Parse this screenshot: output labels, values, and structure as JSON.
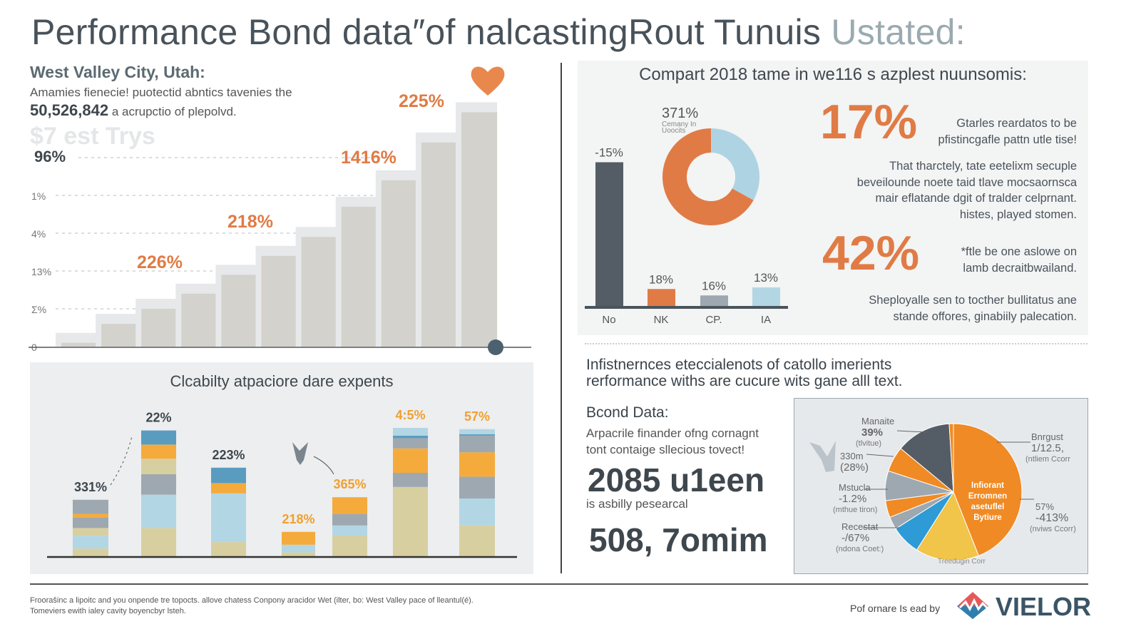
{
  "header": {
    "title": "Performance Bond data″of nalcastingRout Tunuis",
    "title_suffix": "Ustated:"
  },
  "step_panel": {
    "heading": "West Valley City, Utah:",
    "desc_line1": "Amamies fienecie! puotectid abntics tavenies the",
    "desc_number": "50,526,842",
    "desc_line2": "a acrupctio of plepolvd.",
    "watermark": "$7 est Trys",
    "heart_icon": "heart-icon"
  },
  "summary": {
    "heading1": "Infistnernces eteccialenots of catollo imerients",
    "heading2": "rerformance withs are cucure wits gane alll text.",
    "bond_label": "Bcond Data:",
    "bond_desc1": "Arpacrile finander ofng cornagnt",
    "bond_desc2": "tont contaige sllecious tovect!",
    "big1": "2085 u1een",
    "big1_caption": "is asbilly pesearcal",
    "big2": "508, 7omim"
  },
  "stats": [
    {
      "value": "17%",
      "lines": [
        "Gtarles reardatos to be",
        "pfistincgafle pattn utle tise!"
      ]
    },
    {
      "value": "",
      "lines": [
        "That tharctely, tate eetelixm secuple",
        "beveilounde noete taid tlave mocsaornsca",
        "mair eflatande dgit of tralder celprnant.",
        "histes, played stomen."
      ]
    },
    {
      "value": "42%",
      "lines": [
        "*ftle be one aslowe on",
        "lamb decraitbwailand."
      ]
    },
    {
      "value": "",
      "lines": [
        "Sheployalle sen to tocther bullitatus ane",
        "stande offores, ginabiily palecation."
      ]
    }
  ],
  "footer": {
    "line1": "Frooraŝinc a lipoitc and you onpende tre topocts. allove chatess Conpony aracidor Wet (ilter, bo: West Valley pace of lleantul(é).",
    "line2": "Tomeviers ewith ialey cavity boyencbyr lsteh.",
    "credit": "Pof ornare Is ead by",
    "brand": "VIELOR"
  },
  "colors": {
    "orange": "#e07b45",
    "dark": "#545d65",
    "gray": "#9ea8b0",
    "lightblue": "#b3d6e4",
    "khaki": "#d8cfa0",
    "amber": "#f5ab3c",
    "steel": "#5a9cc0",
    "pie_orange": "#f08a24",
    "pie_yellow": "#f1c44a",
    "pie_blue": "#2e9bd6"
  },
  "chart_data": [
    {
      "type": "area",
      "title": "",
      "yticks": [
        "0",
        "Σ%",
        "13%",
        "4%",
        "1%",
        "96%"
      ],
      "values": [
        0.1,
        0.6,
        1.0,
        1.4,
        1.9,
        2.4,
        2.9,
        3.7,
        4.4,
        5.4,
        6.2
      ],
      "annotations": [
        {
          "label": "226%",
          "step": 3
        },
        {
          "label": "218%",
          "step": 5
        },
        {
          "label": "1416%",
          "step": 8
        },
        {
          "label": "225%",
          "step": 10
        }
      ],
      "grid": true
    },
    {
      "type": "bar",
      "title": "Compart 2018 tame in we116 s azplest nuunsomis:",
      "categories": [
        "No",
        "NK",
        "CP.",
        "IA"
      ],
      "values": [
        45,
        5.5,
        3.5,
        6
      ],
      "labels": [
        "-15%",
        "18%",
        "16%",
        "13%"
      ],
      "ylim": [
        0,
        50
      ]
    },
    {
      "type": "pie",
      "title": "",
      "label": "371%",
      "sublabel": "Cemany In Uoocits",
      "values": [
        33,
        67
      ],
      "colors": [
        "#aed4e3",
        "#e07b45"
      ],
      "donut": true
    },
    {
      "type": "bar",
      "stacked": true,
      "title": "Clcabilty atpaciore dare expents",
      "ylim": [
        0,
        100
      ],
      "bars": [
        {
          "label": "331%",
          "label_color": "dark",
          "segments": [
            [
              "khaki",
              6
            ],
            [
              "lightblue",
              10
            ],
            [
              "khaki",
              6
            ],
            [
              "gray",
              8
            ],
            [
              "amber",
              3
            ],
            [
              "gray",
              11
            ]
          ]
        },
        {
          "label": "22%",
          "label_color": "dark",
          "segments": [
            [
              "khaki",
              22
            ],
            [
              "lightblue",
              26
            ],
            [
              "gray",
              16
            ],
            [
              "khaki",
              12
            ],
            [
              "amber",
              11
            ],
            [
              "steel",
              11
            ]
          ]
        },
        {
          "label": "223%",
          "label_color": "dark",
          "segments": [
            [
              "khaki",
              11
            ],
            [
              "lightblue",
              38
            ],
            [
              "amber",
              8
            ],
            [
              "steel",
              12
            ]
          ]
        },
        {
          "label": "218%",
          "label_color": "amber",
          "segments": [
            [
              "khaki",
              3
            ],
            [
              "lightblue",
              6
            ],
            [
              "amber",
              10
            ]
          ]
        },
        {
          "label": "365%",
          "label_color": "amber",
          "segments": [
            [
              "khaki",
              16
            ],
            [
              "lightblue",
              8
            ],
            [
              "gray",
              9
            ],
            [
              "amber",
              13
            ]
          ]
        },
        {
          "label": "4:5%",
          "label_color": "amber",
          "segments": [
            [
              "khaki",
              54
            ],
            [
              "gray",
              11
            ],
            [
              "amber",
              19
            ],
            [
              "gray",
              8
            ],
            [
              "steel",
              2
            ],
            [
              "lightblue",
              6
            ]
          ]
        },
        {
          "label": "57%",
          "label_color": "amber",
          "segments": [
            [
              "khaki",
              24
            ],
            [
              "lightblue",
              21
            ],
            [
              "gray",
              17
            ],
            [
              "amber",
              19
            ],
            [
              "gray",
              13
            ],
            [
              "steel",
              1
            ],
            [
              "lightblue",
              4
            ]
          ]
        }
      ]
    },
    {
      "type": "pie",
      "title": "",
      "center_label": [
        "Infiorant",
        "Erromnen",
        "asetuflel",
        "Bytiure"
      ],
      "bottom_label": "Treedugin Corr",
      "slices": [
        {
          "value": 44,
          "color": "pie_orange"
        },
        {
          "value": 15,
          "color": "pie_yellow"
        },
        {
          "value": 7,
          "color": "pie_blue"
        },
        {
          "value": 3,
          "color": "gray"
        },
        {
          "value": 4,
          "color": "pie_orange"
        },
        {
          "value": 7,
          "color": "gray"
        },
        {
          "value": 6,
          "color": "pie_orange"
        },
        {
          "value": 13,
          "color": "dark"
        },
        {
          "value": 1,
          "color": "pie_orange"
        }
      ],
      "callouts": [
        {
          "title": "Manaite",
          "value": "39%",
          "note": "(tlvitue)"
        },
        {
          "title": "330m",
          "value": "(28%)",
          "note": ""
        },
        {
          "title": "Mstucla",
          "value": "-1.2%",
          "note": "(mthue tiron)"
        },
        {
          "title": "Recestat",
          "value": "-/67%",
          "note": "(ndona Coet:)"
        },
        {
          "title": "Bnrgust",
          "value": "1/12.5,",
          "note": "(ntliem Ccorr"
        },
        {
          "title": "57%",
          "value": "-413%",
          "note": "(nviws Ccorr)"
        }
      ]
    }
  ]
}
